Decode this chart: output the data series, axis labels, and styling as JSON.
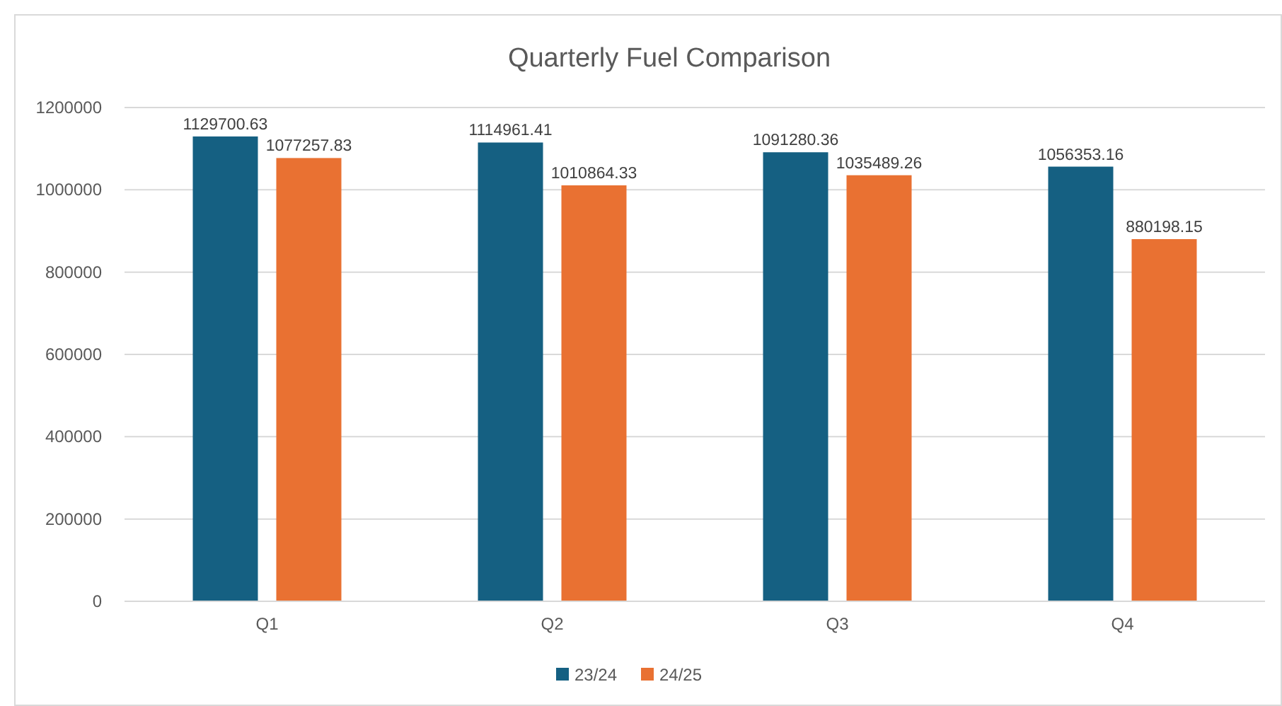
{
  "chart_data": {
    "type": "bar",
    "title": "Quarterly Fuel Comparison",
    "categories": [
      "Q1",
      "Q2",
      "Q3",
      "Q4"
    ],
    "series": [
      {
        "name": "23/24",
        "color": "#156082",
        "values": [
          1129700.63,
          1114961.41,
          1091280.36,
          1056353.16
        ]
      },
      {
        "name": "24/25",
        "color": "#e97132",
        "values": [
          1077257.83,
          1010864.33,
          1035489.26,
          880198.15
        ]
      }
    ],
    "ylim": [
      0,
      1200000
    ],
    "yticks": [
      0,
      200000,
      400000,
      600000,
      800000,
      1000000,
      1200000
    ],
    "grid": "y",
    "legend": "bottom",
    "data_labels": true
  }
}
